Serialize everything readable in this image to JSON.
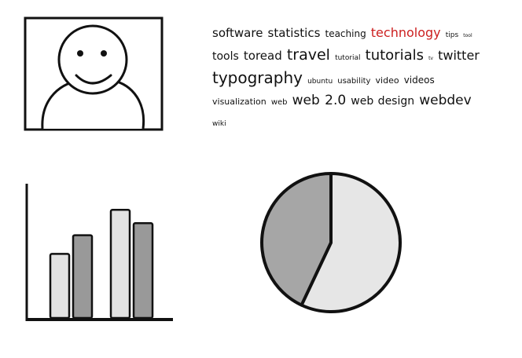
{
  "avatar": {
    "icon": "smiley-person-icon",
    "frame_color": "#111111",
    "fill": "#ffffff"
  },
  "tag_cloud": {
    "highlight_color": "#cc1f1f",
    "tags": [
      {
        "label": "software",
        "size": 15
      },
      {
        "label": "statistics",
        "size": 15
      },
      {
        "label": "teaching",
        "size": 12
      },
      {
        "label": "technology",
        "size": 16,
        "highlight": true
      },
      {
        "label": "tips",
        "size": 9
      },
      {
        "label": "tool",
        "size": 6
      },
      {
        "label": "tools",
        "size": 14
      },
      {
        "label": "toread",
        "size": 15
      },
      {
        "label": "travel",
        "size": 19
      },
      {
        "label": "tutorial",
        "size": 9
      },
      {
        "label": "tutorials",
        "size": 18
      },
      {
        "label": "tv",
        "size": 6
      },
      {
        "label": "twitter",
        "size": 16
      },
      {
        "label": "typography",
        "size": 20
      },
      {
        "label": "ubuntu",
        "size": 9
      },
      {
        "label": "usability",
        "size": 10
      },
      {
        "label": "video",
        "size": 11
      },
      {
        "label": "videos",
        "size": 12
      },
      {
        "label": "visualization",
        "size": 11
      },
      {
        "label": "web",
        "size": 10
      },
      {
        "label": "web 2.0",
        "size": 17
      },
      {
        "label": "web design",
        "size": 14
      },
      {
        "label": "webdev",
        "size": 17
      },
      {
        "label": "wiki",
        "size": 9
      }
    ]
  },
  "chart_data": [
    {
      "type": "bar",
      "categories": [
        "",
        ""
      ],
      "ylim": [
        0,
        100
      ],
      "grid": false,
      "series": [
        {
          "color": "#e2e2e2",
          "values": [
            48,
            81
          ]
        },
        {
          "color": "#999999",
          "values": [
            62,
            71
          ]
        }
      ]
    },
    {
      "type": "pie",
      "values": [
        57,
        43
      ],
      "colors": [
        "#e6e6e6",
        "#a6a6a6"
      ]
    }
  ]
}
